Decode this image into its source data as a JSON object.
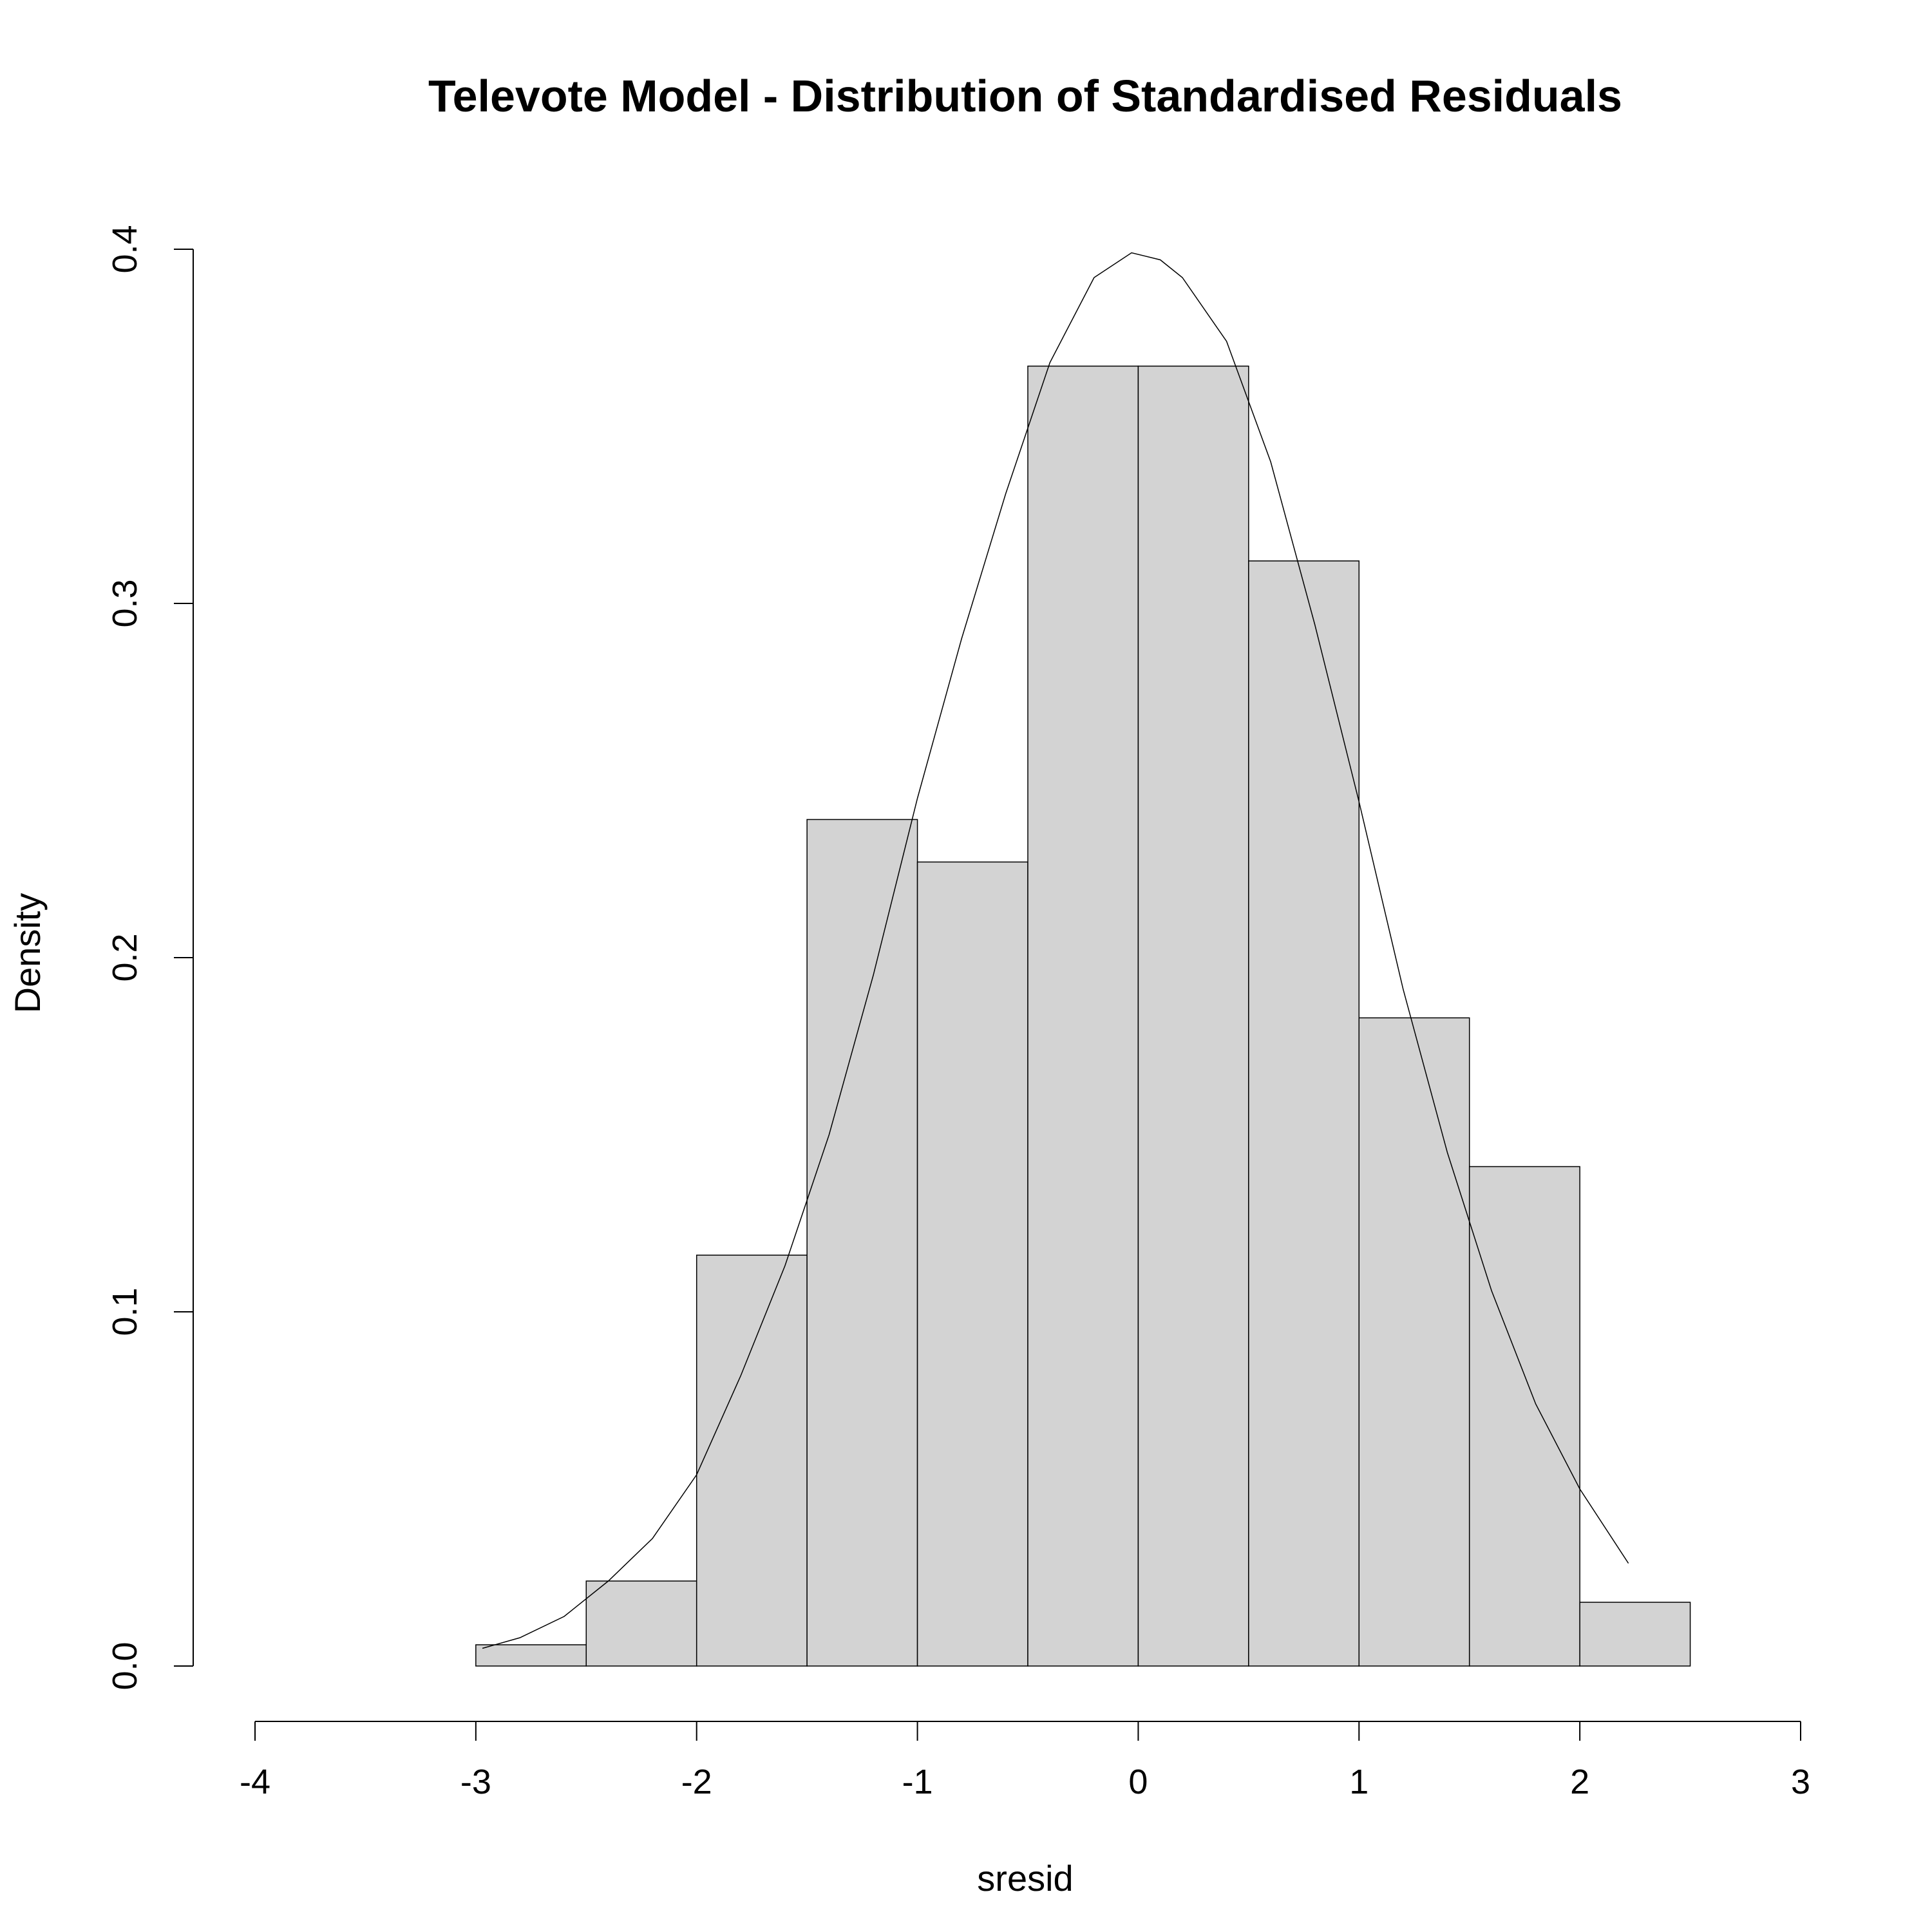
{
  "chart_data": {
    "type": "bar",
    "title": "Televote Model - Distribution of Standardised Residuals",
    "xlabel": "sresid",
    "ylabel": "Density",
    "xlim": [
      -4,
      3
    ],
    "ylim": [
      0,
      0.4
    ],
    "x_ticks": [
      "-4",
      "-3",
      "-2",
      "-1",
      "0",
      "1",
      "2",
      "3"
    ],
    "y_ticks": [
      "0.0",
      "0.1",
      "0.2",
      "0.3",
      "0.4"
    ],
    "grid": false,
    "legend": "none",
    "bar_color": "#d3d3d3",
    "bin_edges": [
      -3.0,
      -2.5,
      -2.0,
      -1.5,
      -1.0,
      -0.5,
      0.0,
      0.5,
      1.0,
      1.5,
      2.0,
      2.5
    ],
    "values": [
      0.006,
      0.024,
      0.116,
      0.239,
      0.227,
      0.367,
      0.367,
      0.312,
      0.183,
      0.141,
      0.018
    ],
    "density_curve": {
      "x": [
        -2.97,
        -2.8,
        -2.6,
        -2.4,
        -2.2,
        -2.0,
        -1.8,
        -1.6,
        -1.4,
        -1.2,
        -1.0,
        -0.8,
        -0.6,
        -0.4,
        -0.2,
        -0.03,
        0.1,
        0.2,
        0.4,
        0.6,
        0.8,
        1.0,
        1.2,
        1.4,
        1.6,
        1.8,
        2.0,
        2.22
      ],
      "y": [
        0.005,
        0.008,
        0.014,
        0.024,
        0.036,
        0.054,
        0.082,
        0.113,
        0.15,
        0.195,
        0.245,
        0.29,
        0.331,
        0.368,
        0.392,
        0.399,
        0.397,
        0.392,
        0.374,
        0.34,
        0.294,
        0.244,
        0.191,
        0.145,
        0.106,
        0.074,
        0.05,
        0.029
      ]
    }
  }
}
